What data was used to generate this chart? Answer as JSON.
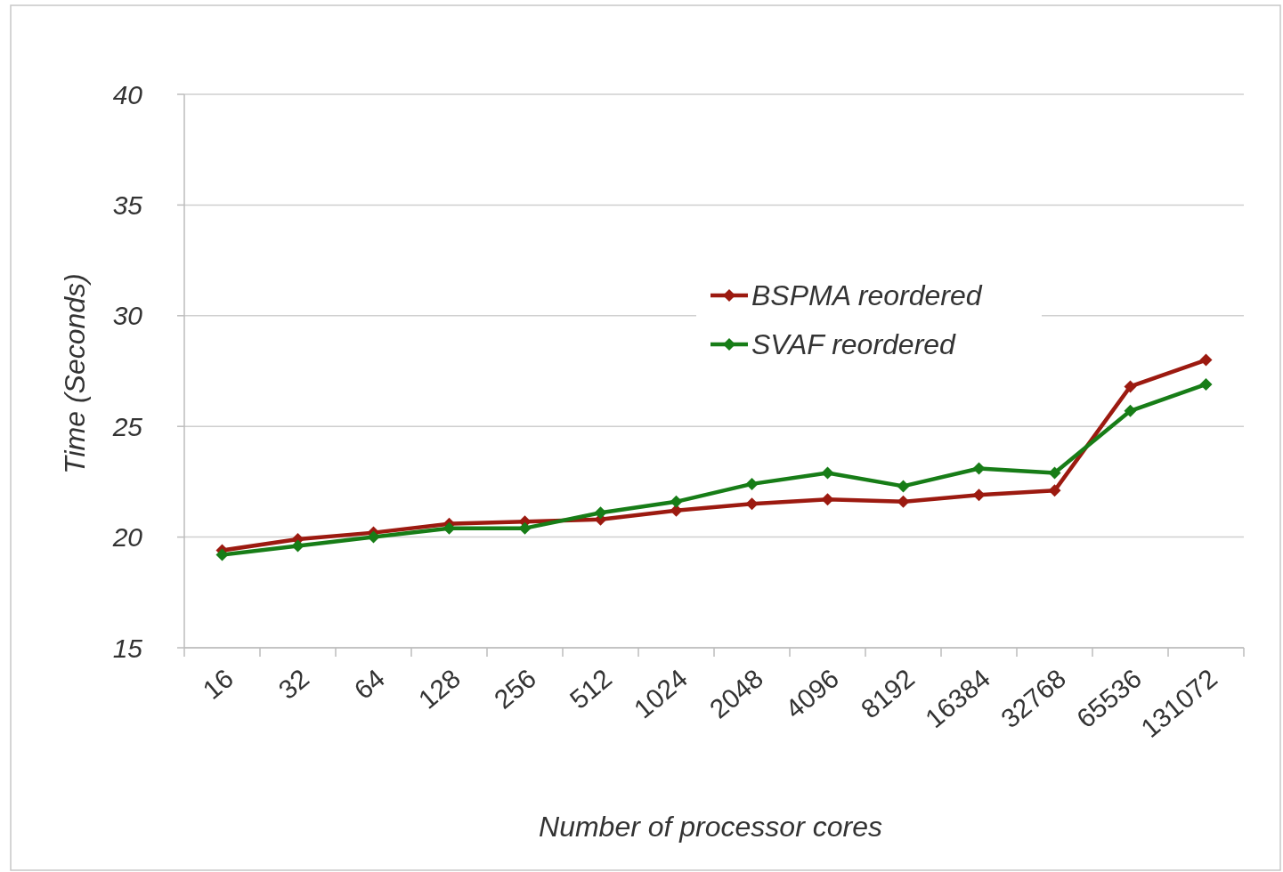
{
  "chart_data": {
    "type": "line",
    "xlabel": "Number of processor cores",
    "ylabel": "Time (Seconds)",
    "categories": [
      "16",
      "32",
      "64",
      "128",
      "256",
      "512",
      "1024",
      "2048",
      "4096",
      "8192",
      "16384",
      "32768",
      "65536",
      "131072"
    ],
    "series": [
      {
        "name": "BSPMA reordered",
        "color": "#9c1a10",
        "values": [
          19.4,
          19.9,
          20.2,
          20.6,
          20.7,
          20.8,
          21.2,
          21.5,
          21.7,
          21.6,
          21.9,
          22.1,
          26.8,
          28.0
        ]
      },
      {
        "name": "SVAF reordered",
        "color": "#177d17",
        "values": [
          19.2,
          19.6,
          20.0,
          20.4,
          20.4,
          21.1,
          21.6,
          22.4,
          22.9,
          22.3,
          23.1,
          22.9,
          25.7,
          26.9
        ]
      }
    ],
    "ylim": [
      15,
      40
    ],
    "yticks": [
      15,
      20,
      25,
      30,
      35,
      40
    ],
    "grid": "y",
    "legend": "center",
    "marker": "diamond",
    "line_style": "solid"
  }
}
